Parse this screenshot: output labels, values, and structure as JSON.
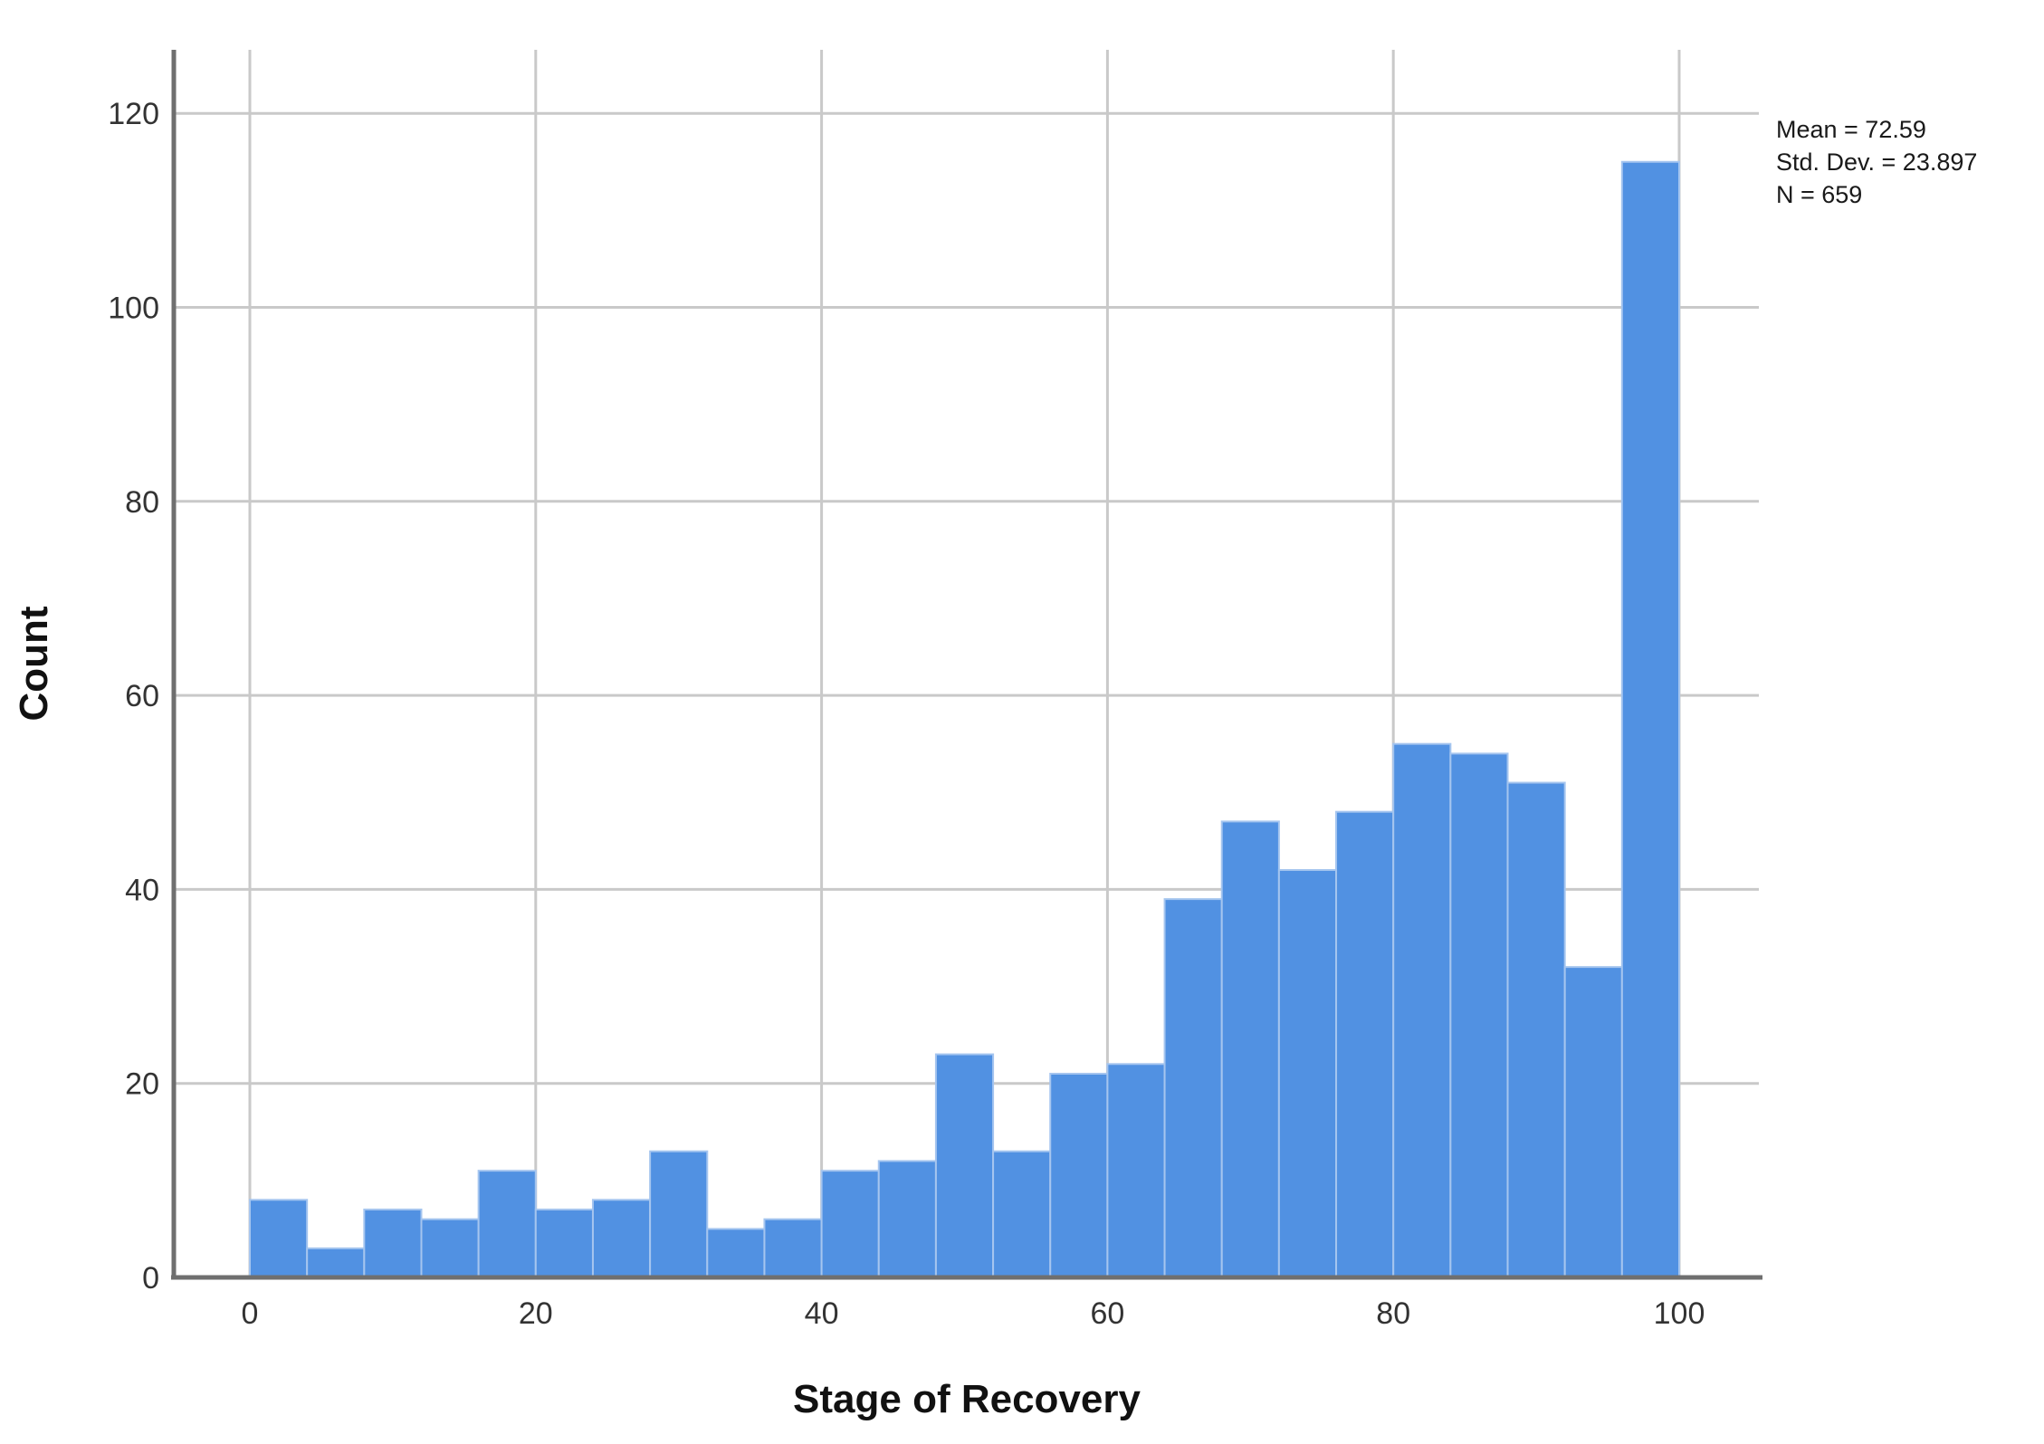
{
  "chart_data": {
    "type": "bar",
    "subtype": "histogram",
    "title": "",
    "xlabel": "Stage of Recovery",
    "ylabel": "Count",
    "bin_start": 0,
    "bin_width": 4,
    "bin_edges": [
      0,
      4,
      8,
      12,
      16,
      20,
      24,
      28,
      32,
      36,
      40,
      44,
      48,
      52,
      56,
      60,
      64,
      68,
      72,
      76,
      80,
      84,
      88,
      92,
      96,
      100
    ],
    "counts": [
      8,
      3,
      7,
      6,
      11,
      7,
      8,
      13,
      5,
      6,
      11,
      12,
      23,
      13,
      21,
      22,
      39,
      47,
      42,
      48,
      55,
      54,
      51,
      32,
      115
    ],
    "x_ticks": [
      0,
      20,
      40,
      60,
      80,
      100
    ],
    "y_ticks": [
      0,
      20,
      40,
      60,
      80,
      100,
      120
    ],
    "xlim": [
      -5.3,
      105.6
    ],
    "ylim": [
      0,
      126.5
    ],
    "grid": true,
    "legend_position": "none"
  },
  "stats": {
    "mean": 72.59,
    "std_dev": 23.897,
    "n": 659,
    "mean_label": "Mean = 72.59",
    "std_label": "Std. Dev. = 23.897",
    "n_label": "N = 659"
  },
  "colors": {
    "bar_fill": "#5191E2",
    "bar_edge": "#A5C5EF",
    "gridline": "#C9C9C9",
    "axis": "#6F6F6F",
    "tick_text": "#333333",
    "label_text": "#111111"
  }
}
